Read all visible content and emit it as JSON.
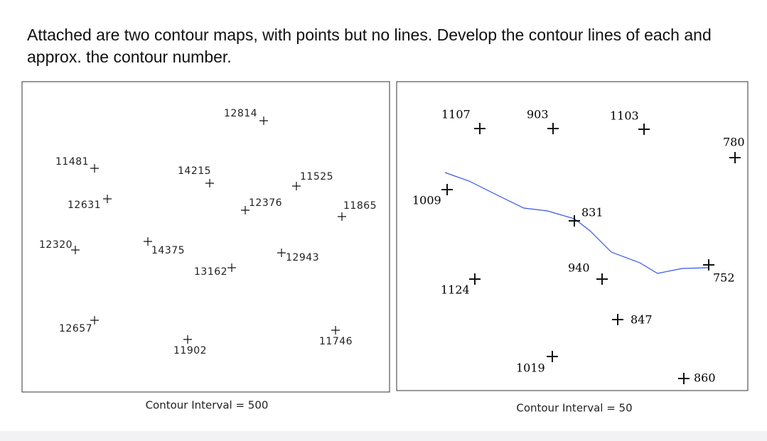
{
  "question": "Attached are two contour maps, with points but no lines.  Develop the contour lines of each and approx. the contour number.",
  "maps": [
    {
      "points": [
        12814,
        11481,
        14215,
        11525,
        12631,
        12376,
        11865,
        12320,
        14375,
        12943,
        13162,
        12657,
        11902,
        11746
      ],
      "caption": "Contour Interval = 500"
    },
    {
      "points": [
        1107,
        903,
        1103,
        780,
        1009,
        831,
        940,
        752,
        1124,
        847,
        1019,
        860
      ],
      "caption": "Contour Interval = 50"
    }
  ]
}
